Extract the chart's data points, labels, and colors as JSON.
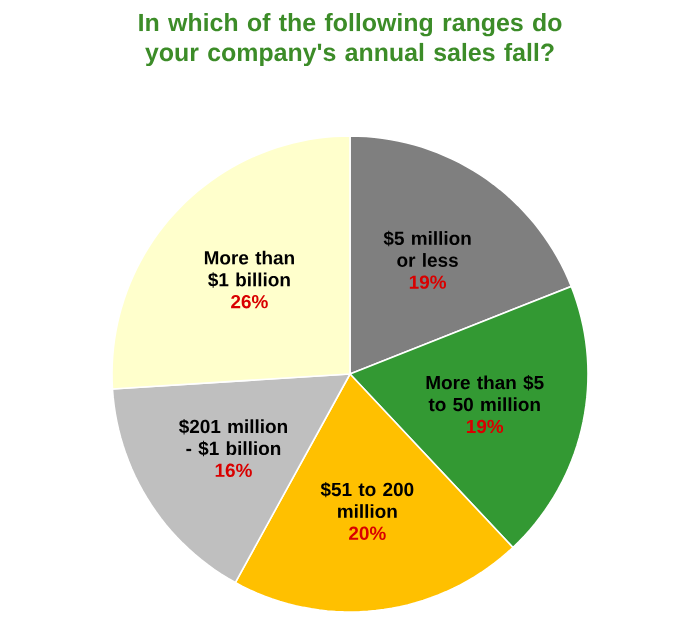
{
  "chart_data": {
    "type": "pie",
    "title": "In which of the following ranges do your company's annual sales fall?",
    "categories": [
      "$5 million or less",
      "More than $5 to 50 million",
      "$51 to 200 million",
      "$201 million - $1 billion",
      "More than $1 billion"
    ],
    "values": [
      19,
      19,
      20,
      16,
      26
    ],
    "value_labels": [
      "19%",
      "19%",
      "20%",
      "16%",
      "26%"
    ],
    "colors": [
      "#7f7f7f",
      "#339933",
      "#ffc000",
      "#bfbfbf",
      "#ffffcc"
    ]
  }
}
